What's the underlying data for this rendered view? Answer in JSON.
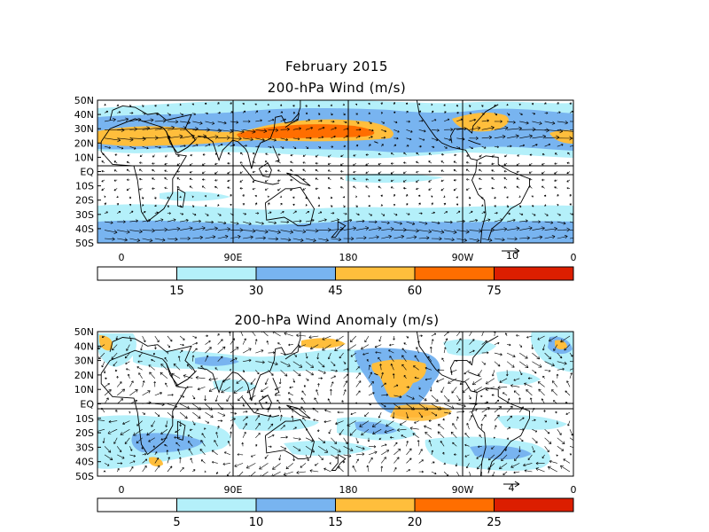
{
  "figure": {
    "date_title": "February 2015",
    "panels": [
      {
        "id": "wind",
        "title": "200-hPa Wind (m/s)",
        "lat_labels": [
          "50N",
          "40N",
          "30N",
          "20N",
          "10N",
          "EQ",
          "10S",
          "20S",
          "30S",
          "40S",
          "50S"
        ],
        "lon_labels": [
          "0",
          "90E",
          "180",
          "90W",
          "0"
        ],
        "ref_vector": "10",
        "colorbar": {
          "levels": [
            "15",
            "30",
            "45",
            "60",
            "75"
          ],
          "colors": [
            "#ffffff",
            "#b4f0fa",
            "#78b4f0",
            "#ffbe3c",
            "#ff6e00",
            "#dc1e00"
          ]
        }
      },
      {
        "id": "anomaly",
        "title": "200-hPa Wind Anomaly (m/s)",
        "lat_labels": [
          "50N",
          "40N",
          "30N",
          "20N",
          "10N",
          "EQ",
          "10S",
          "20S",
          "30S",
          "40S",
          "50S"
        ],
        "lon_labels": [
          "0",
          "90E",
          "180",
          "90W",
          "0"
        ],
        "ref_vector": "4",
        "colorbar": {
          "levels": [
            "5",
            "10",
            "15",
            "20",
            "25"
          ],
          "colors": [
            "#ffffff",
            "#b4f0fa",
            "#78b4f0",
            "#ffbe3c",
            "#ff6e00",
            "#dc1e00"
          ]
        }
      }
    ]
  }
}
